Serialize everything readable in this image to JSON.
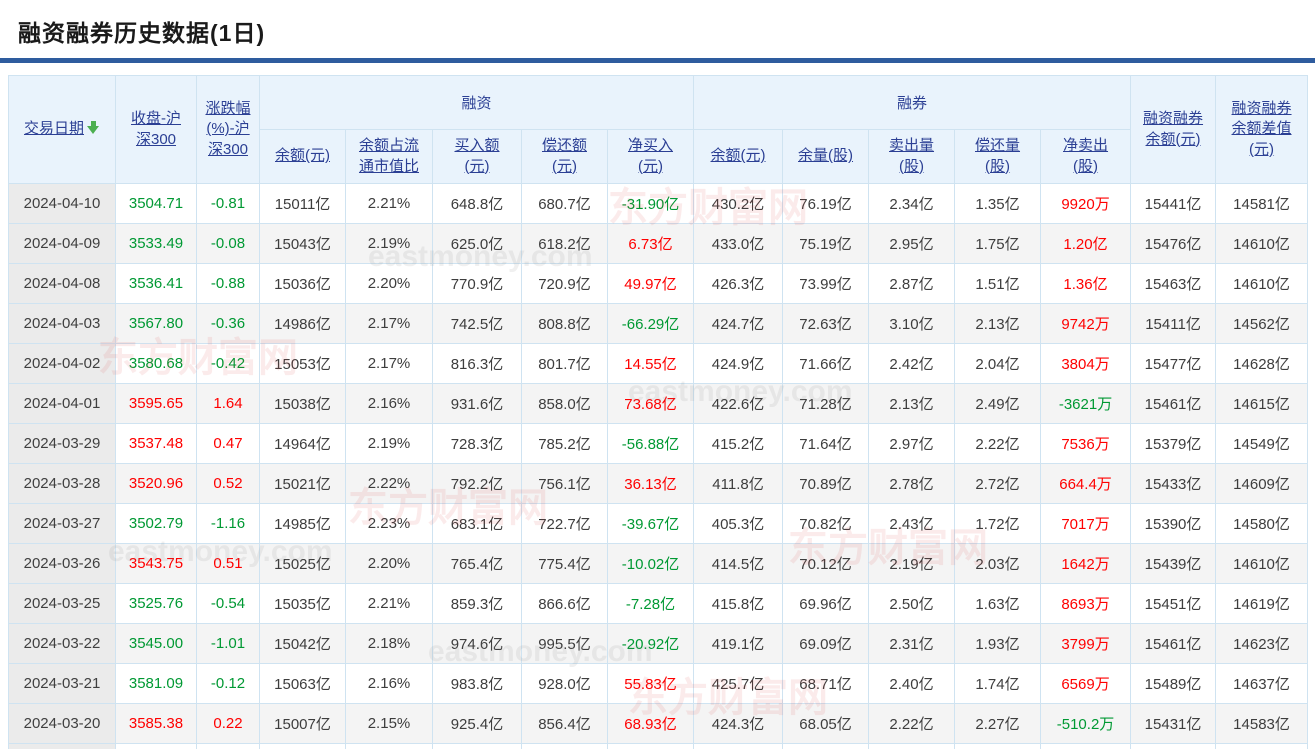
{
  "page": {
    "title": "融资融券历史数据(1日)"
  },
  "colors": {
    "positive_red": "#ff0000",
    "negative_green": "#009933",
    "header_link_blue": "#2b3f94",
    "title_rule_blue": "#2e5c9e",
    "header_bg": "#e9f3fc",
    "sort_arrow_green": "#4caf50"
  },
  "icons": {
    "date_sort": "sort-down-arrow"
  },
  "watermark": {
    "cn": "东方财富网",
    "en": "eastmoney.com"
  },
  "table": {
    "header": {
      "date": "交易日期",
      "close": "收盘-沪\n深300",
      "change": "涨跌幅\n(%)-沪\n深300",
      "financing_group": "融资",
      "securities_group": "融券",
      "fin_balance": "余额(元)",
      "fin_ratio": "余额占流\n通市值比",
      "fin_buy": "买入额\n(元)",
      "fin_repay": "偿还额\n(元)",
      "fin_net_buy": "净买入\n(元)",
      "sec_balance": "余额(元)",
      "sec_volume": "余量(股)",
      "sec_sell": "卖出量\n(股)",
      "sec_repay": "偿还量\n(股)",
      "sec_net_sell": "净卖出\n(股)",
      "total_balance": "融资融券\n余额(元)",
      "balance_diff": "融资融券\n余额差值\n(元)"
    },
    "rows": [
      {
        "cells": [
          {
            "v": "2024-04-10"
          },
          {
            "v": "3504.71",
            "c": "green"
          },
          {
            "v": "-0.81",
            "c": "green"
          },
          {
            "v": "15011亿"
          },
          {
            "v": "2.21%"
          },
          {
            "v": "648.8亿"
          },
          {
            "v": "680.7亿"
          },
          {
            "v": "-31.90亿",
            "c": "green"
          },
          {
            "v": "430.2亿"
          },
          {
            "v": "76.19亿"
          },
          {
            "v": "2.34亿"
          },
          {
            "v": "1.35亿"
          },
          {
            "v": "9920万",
            "c": "red"
          },
          {
            "v": "15441亿"
          },
          {
            "v": "14581亿"
          }
        ]
      },
      {
        "cells": [
          {
            "v": "2024-04-09"
          },
          {
            "v": "3533.49",
            "c": "green"
          },
          {
            "v": "-0.08",
            "c": "green"
          },
          {
            "v": "15043亿"
          },
          {
            "v": "2.19%"
          },
          {
            "v": "625.0亿"
          },
          {
            "v": "618.2亿"
          },
          {
            "v": "6.73亿",
            "c": "red"
          },
          {
            "v": "433.0亿"
          },
          {
            "v": "75.19亿"
          },
          {
            "v": "2.95亿"
          },
          {
            "v": "1.75亿"
          },
          {
            "v": "1.20亿",
            "c": "red"
          },
          {
            "v": "15476亿"
          },
          {
            "v": "14610亿"
          }
        ]
      },
      {
        "cells": [
          {
            "v": "2024-04-08"
          },
          {
            "v": "3536.41",
            "c": "green"
          },
          {
            "v": "-0.88",
            "c": "green"
          },
          {
            "v": "15036亿"
          },
          {
            "v": "2.20%"
          },
          {
            "v": "770.9亿"
          },
          {
            "v": "720.9亿"
          },
          {
            "v": "49.97亿",
            "c": "red"
          },
          {
            "v": "426.3亿"
          },
          {
            "v": "73.99亿"
          },
          {
            "v": "2.87亿"
          },
          {
            "v": "1.51亿"
          },
          {
            "v": "1.36亿",
            "c": "red"
          },
          {
            "v": "15463亿"
          },
          {
            "v": "14610亿"
          }
        ]
      },
      {
        "cells": [
          {
            "v": "2024-04-03"
          },
          {
            "v": "3567.80",
            "c": "green"
          },
          {
            "v": "-0.36",
            "c": "green"
          },
          {
            "v": "14986亿"
          },
          {
            "v": "2.17%"
          },
          {
            "v": "742.5亿"
          },
          {
            "v": "808.8亿"
          },
          {
            "v": "-66.29亿",
            "c": "green"
          },
          {
            "v": "424.7亿"
          },
          {
            "v": "72.63亿"
          },
          {
            "v": "3.10亿"
          },
          {
            "v": "2.13亿"
          },
          {
            "v": "9742万",
            "c": "red"
          },
          {
            "v": "15411亿"
          },
          {
            "v": "14562亿"
          }
        ]
      },
      {
        "cells": [
          {
            "v": "2024-04-02"
          },
          {
            "v": "3580.68",
            "c": "green"
          },
          {
            "v": "-0.42",
            "c": "green"
          },
          {
            "v": "15053亿"
          },
          {
            "v": "2.17%"
          },
          {
            "v": "816.3亿"
          },
          {
            "v": "801.7亿"
          },
          {
            "v": "14.55亿",
            "c": "red"
          },
          {
            "v": "424.9亿"
          },
          {
            "v": "71.66亿"
          },
          {
            "v": "2.42亿"
          },
          {
            "v": "2.04亿"
          },
          {
            "v": "3804万",
            "c": "red"
          },
          {
            "v": "15477亿"
          },
          {
            "v": "14628亿"
          }
        ]
      },
      {
        "cells": [
          {
            "v": "2024-04-01"
          },
          {
            "v": "3595.65",
            "c": "red"
          },
          {
            "v": "1.64",
            "c": "red"
          },
          {
            "v": "15038亿"
          },
          {
            "v": "2.16%"
          },
          {
            "v": "931.6亿"
          },
          {
            "v": "858.0亿"
          },
          {
            "v": "73.68亿",
            "c": "red"
          },
          {
            "v": "422.6亿"
          },
          {
            "v": "71.28亿"
          },
          {
            "v": "2.13亿"
          },
          {
            "v": "2.49亿"
          },
          {
            "v": "-3621万",
            "c": "green"
          },
          {
            "v": "15461亿"
          },
          {
            "v": "14615亿"
          }
        ]
      },
      {
        "cells": [
          {
            "v": "2024-03-29"
          },
          {
            "v": "3537.48",
            "c": "red"
          },
          {
            "v": "0.47",
            "c": "red"
          },
          {
            "v": "14964亿"
          },
          {
            "v": "2.19%"
          },
          {
            "v": "728.3亿"
          },
          {
            "v": "785.2亿"
          },
          {
            "v": "-56.88亿",
            "c": "green"
          },
          {
            "v": "415.2亿"
          },
          {
            "v": "71.64亿"
          },
          {
            "v": "2.97亿"
          },
          {
            "v": "2.22亿"
          },
          {
            "v": "7536万",
            "c": "red"
          },
          {
            "v": "15379亿"
          },
          {
            "v": "14549亿"
          }
        ]
      },
      {
        "cells": [
          {
            "v": "2024-03-28"
          },
          {
            "v": "3520.96",
            "c": "red"
          },
          {
            "v": "0.52",
            "c": "red"
          },
          {
            "v": "15021亿"
          },
          {
            "v": "2.22%"
          },
          {
            "v": "792.2亿"
          },
          {
            "v": "756.1亿"
          },
          {
            "v": "36.13亿",
            "c": "red"
          },
          {
            "v": "411.8亿"
          },
          {
            "v": "70.89亿"
          },
          {
            "v": "2.78亿"
          },
          {
            "v": "2.72亿"
          },
          {
            "v": "664.4万",
            "c": "red"
          },
          {
            "v": "15433亿"
          },
          {
            "v": "14609亿"
          }
        ]
      },
      {
        "cells": [
          {
            "v": "2024-03-27"
          },
          {
            "v": "3502.79",
            "c": "green"
          },
          {
            "v": "-1.16",
            "c": "green"
          },
          {
            "v": "14985亿"
          },
          {
            "v": "2.23%"
          },
          {
            "v": "683.1亿"
          },
          {
            "v": "722.7亿"
          },
          {
            "v": "-39.67亿",
            "c": "green"
          },
          {
            "v": "405.3亿"
          },
          {
            "v": "70.82亿"
          },
          {
            "v": "2.43亿"
          },
          {
            "v": "1.72亿"
          },
          {
            "v": "7017万",
            "c": "red"
          },
          {
            "v": "15390亿"
          },
          {
            "v": "14580亿"
          }
        ]
      },
      {
        "cells": [
          {
            "v": "2024-03-26"
          },
          {
            "v": "3543.75",
            "c": "red"
          },
          {
            "v": "0.51",
            "c": "red"
          },
          {
            "v": "15025亿"
          },
          {
            "v": "2.20%"
          },
          {
            "v": "765.4亿"
          },
          {
            "v": "775.4亿"
          },
          {
            "v": "-10.02亿",
            "c": "green"
          },
          {
            "v": "414.5亿"
          },
          {
            "v": "70.12亿"
          },
          {
            "v": "2.19亿"
          },
          {
            "v": "2.03亿"
          },
          {
            "v": "1642万",
            "c": "red"
          },
          {
            "v": "15439亿"
          },
          {
            "v": "14610亿"
          }
        ]
      },
      {
        "cells": [
          {
            "v": "2024-03-25"
          },
          {
            "v": "3525.76",
            "c": "green"
          },
          {
            "v": "-0.54",
            "c": "green"
          },
          {
            "v": "15035亿"
          },
          {
            "v": "2.21%"
          },
          {
            "v": "859.3亿"
          },
          {
            "v": "866.6亿"
          },
          {
            "v": "-7.28亿",
            "c": "green"
          },
          {
            "v": "415.8亿"
          },
          {
            "v": "69.96亿"
          },
          {
            "v": "2.50亿"
          },
          {
            "v": "1.63亿"
          },
          {
            "v": "8693万",
            "c": "red"
          },
          {
            "v": "15451亿"
          },
          {
            "v": "14619亿"
          }
        ]
      },
      {
        "cells": [
          {
            "v": "2024-03-22"
          },
          {
            "v": "3545.00",
            "c": "green"
          },
          {
            "v": "-1.01",
            "c": "green"
          },
          {
            "v": "15042亿"
          },
          {
            "v": "2.18%"
          },
          {
            "v": "974.6亿"
          },
          {
            "v": "995.5亿"
          },
          {
            "v": "-20.92亿",
            "c": "green"
          },
          {
            "v": "419.1亿"
          },
          {
            "v": "69.09亿"
          },
          {
            "v": "2.31亿"
          },
          {
            "v": "1.93亿"
          },
          {
            "v": "3799万",
            "c": "red"
          },
          {
            "v": "15461亿"
          },
          {
            "v": "14623亿"
          }
        ]
      },
      {
        "cells": [
          {
            "v": "2024-03-21"
          },
          {
            "v": "3581.09",
            "c": "green"
          },
          {
            "v": "-0.12",
            "c": "green"
          },
          {
            "v": "15063亿"
          },
          {
            "v": "2.16%"
          },
          {
            "v": "983.8亿"
          },
          {
            "v": "928.0亿"
          },
          {
            "v": "55.83亿",
            "c": "red"
          },
          {
            "v": "425.7亿"
          },
          {
            "v": "68.71亿"
          },
          {
            "v": "2.40亿"
          },
          {
            "v": "1.74亿"
          },
          {
            "v": "6569万",
            "c": "red"
          },
          {
            "v": "15489亿"
          },
          {
            "v": "14637亿"
          }
        ]
      },
      {
        "cells": [
          {
            "v": "2024-03-20"
          },
          {
            "v": "3585.38",
            "c": "red"
          },
          {
            "v": "0.22",
            "c": "red"
          },
          {
            "v": "15007亿"
          },
          {
            "v": "2.15%"
          },
          {
            "v": "925.4亿"
          },
          {
            "v": "856.4亿"
          },
          {
            "v": "68.93亿",
            "c": "red"
          },
          {
            "v": "424.3亿"
          },
          {
            "v": "68.05亿"
          },
          {
            "v": "2.22亿"
          },
          {
            "v": "2.27亿"
          },
          {
            "v": "-510.2万",
            "c": "green"
          },
          {
            "v": "15431亿"
          },
          {
            "v": "14583亿"
          }
        ]
      }
    ]
  }
}
